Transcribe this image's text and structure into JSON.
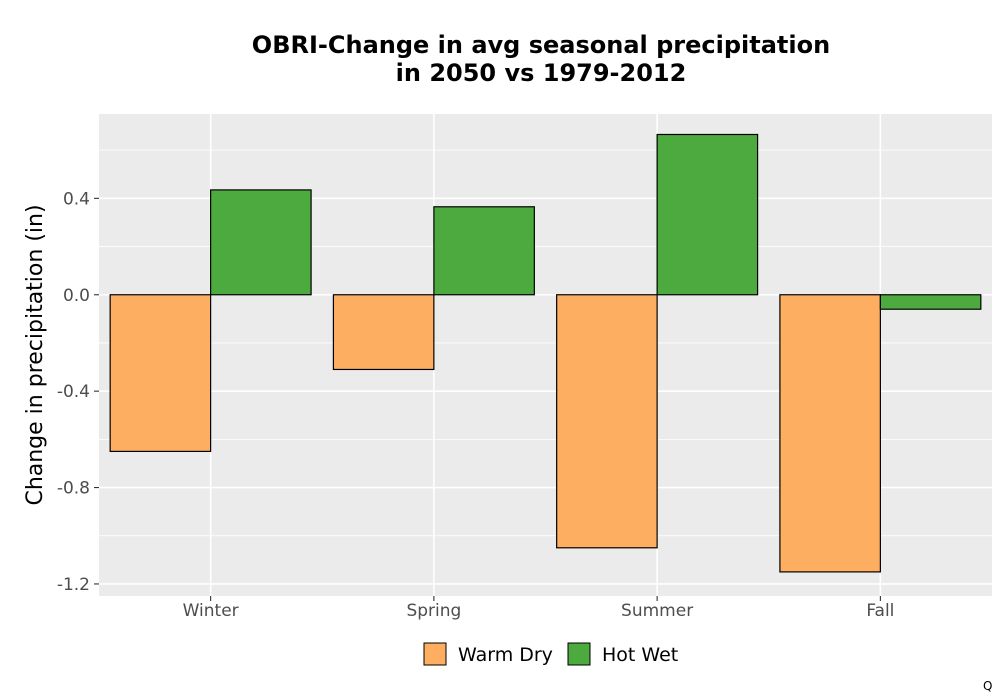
{
  "chart_data": {
    "type": "bar",
    "title_line1": "OBRI-Change in avg seasonal precipitation",
    "title_line2": "in 2050 vs 1979-2012",
    "xlabel": "",
    "ylabel": "Change in precipitation (in)",
    "categories": [
      "Winter",
      "Spring",
      "Summer",
      "Fall"
    ],
    "series": [
      {
        "name": "Warm Dry",
        "color": "#fdae61",
        "values": [
          -0.65,
          -0.31,
          -1.05,
          -1.15
        ]
      },
      {
        "name": "Hot Wet",
        "color": "#4daa3f",
        "values": [
          0.435,
          0.365,
          0.665,
          -0.06
        ]
      }
    ],
    "ylim": [
      -1.25,
      0.75
    ],
    "yticks": [
      -1.2,
      -0.8,
      -0.4,
      0.0,
      0.4
    ],
    "ytick_labels": [
      "-1.2",
      "-0.8",
      "-0.4",
      "0.0",
      "0.4"
    ],
    "grid": true,
    "legend_position": "bottom",
    "corner_mark": "Q"
  }
}
